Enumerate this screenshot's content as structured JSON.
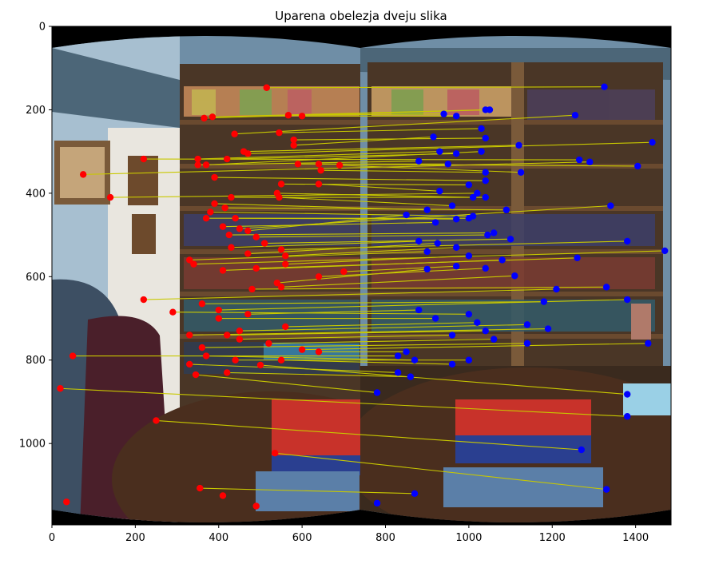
{
  "chart_data": {
    "type": "scatter",
    "title": "Uparena obelezja dveju slika",
    "xlabel": "",
    "ylabel": "",
    "xlim": [
      0,
      1485
    ],
    "ylim": [
      1195,
      0
    ],
    "xticks": [
      0,
      200,
      400,
      600,
      800,
      1000,
      1200,
      1400
    ],
    "yticks": [
      0,
      200,
      400,
      600,
      800,
      1000
    ],
    "grid": false,
    "image_background": "two stitched panoramic photos of a bookshelf room with a dictionary on a table",
    "series": [
      {
        "color": "#ff0000",
        "marker": "circle",
        "points": [
          [
            515,
            147
          ],
          [
            365,
            220
          ],
          [
            385,
            217
          ],
          [
            567,
            213
          ],
          [
            600,
            215
          ],
          [
            438,
            258
          ],
          [
            545,
            255
          ],
          [
            580,
            272
          ],
          [
            580,
            285
          ],
          [
            460,
            300
          ],
          [
            470,
            305
          ],
          [
            350,
            318
          ],
          [
            420,
            318
          ],
          [
            370,
            332
          ],
          [
            220,
            318
          ],
          [
            75,
            355
          ],
          [
            350,
            332
          ],
          [
            590,
            330
          ],
          [
            640,
            330
          ],
          [
            690,
            333
          ],
          [
            645,
            345
          ],
          [
            390,
            362
          ],
          [
            550,
            378
          ],
          [
            640,
            378
          ],
          [
            140,
            410
          ],
          [
            430,
            410
          ],
          [
            540,
            400
          ],
          [
            545,
            410
          ],
          [
            390,
            425
          ],
          [
            415,
            435
          ],
          [
            380,
            445
          ],
          [
            370,
            460
          ],
          [
            440,
            460
          ],
          [
            410,
            480
          ],
          [
            450,
            485
          ],
          [
            470,
            490
          ],
          [
            425,
            500
          ],
          [
            490,
            505
          ],
          [
            510,
            520
          ],
          [
            430,
            530
          ],
          [
            550,
            535
          ],
          [
            470,
            545
          ],
          [
            560,
            550
          ],
          [
            330,
            560
          ],
          [
            340,
            570
          ],
          [
            560,
            570
          ],
          [
            490,
            580
          ],
          [
            410,
            585
          ],
          [
            700,
            588
          ],
          [
            640,
            600
          ],
          [
            540,
            615
          ],
          [
            550,
            625
          ],
          [
            480,
            630
          ],
          [
            220,
            655
          ],
          [
            360,
            665
          ],
          [
            400,
            680
          ],
          [
            470,
            690
          ],
          [
            290,
            685
          ],
          [
            400,
            700
          ],
          [
            560,
            720
          ],
          [
            450,
            730
          ],
          [
            330,
            740
          ],
          [
            420,
            740
          ],
          [
            450,
            750
          ],
          [
            520,
            760
          ],
          [
            360,
            770
          ],
          [
            600,
            775
          ],
          [
            640,
            780
          ],
          [
            50,
            790
          ],
          [
            370,
            790
          ],
          [
            440,
            800
          ],
          [
            550,
            800
          ],
          [
            330,
            810
          ],
          [
            420,
            830
          ],
          [
            345,
            835
          ],
          [
            500,
            812
          ],
          [
            20,
            868
          ],
          [
            250,
            945
          ],
          [
            535,
            1023
          ],
          [
            355,
            1107
          ],
          [
            410,
            1125
          ],
          [
            35,
            1140
          ],
          [
            490,
            1150
          ]
        ]
      },
      {
        "color": "#0000ff",
        "marker": "circle",
        "points": [
          [
            1325,
            145
          ],
          [
            1050,
            200
          ],
          [
            1040,
            200
          ],
          [
            940,
            210
          ],
          [
            970,
            215
          ],
          [
            1255,
            213
          ],
          [
            1030,
            245
          ],
          [
            1040,
            268
          ],
          [
            915,
            265
          ],
          [
            1120,
            285
          ],
          [
            1440,
            278
          ],
          [
            930,
            300
          ],
          [
            970,
            305
          ],
          [
            1030,
            300
          ],
          [
            1265,
            320
          ],
          [
            1290,
            325
          ],
          [
            880,
            323
          ],
          [
            950,
            330
          ],
          [
            1405,
            335
          ],
          [
            1125,
            350
          ],
          [
            1040,
            350
          ],
          [
            1040,
            370
          ],
          [
            1000,
            380
          ],
          [
            930,
            395
          ],
          [
            1020,
            400
          ],
          [
            1040,
            410
          ],
          [
            1010,
            410
          ],
          [
            960,
            430
          ],
          [
            900,
            440
          ],
          [
            1090,
            440
          ],
          [
            1010,
            455
          ],
          [
            1000,
            460
          ],
          [
            970,
            462
          ],
          [
            920,
            470
          ],
          [
            1340,
            430
          ],
          [
            850,
            452
          ],
          [
            1060,
            495
          ],
          [
            1045,
            500
          ],
          [
            1100,
            510
          ],
          [
            880,
            515
          ],
          [
            1380,
            515
          ],
          [
            925,
            520
          ],
          [
            970,
            530
          ],
          [
            900,
            540
          ],
          [
            1470,
            538
          ],
          [
            1000,
            550
          ],
          [
            1260,
            555
          ],
          [
            1080,
            560
          ],
          [
            970,
            575
          ],
          [
            1040,
            580
          ],
          [
            900,
            582
          ],
          [
            1110,
            598
          ],
          [
            1330,
            625
          ],
          [
            1210,
            630
          ],
          [
            1180,
            660
          ],
          [
            1380,
            655
          ],
          [
            880,
            680
          ],
          [
            1000,
            690
          ],
          [
            920,
            700
          ],
          [
            1020,
            710
          ],
          [
            1140,
            715
          ],
          [
            1190,
            725
          ],
          [
            1040,
            730
          ],
          [
            960,
            740
          ],
          [
            1060,
            750
          ],
          [
            1140,
            760
          ],
          [
            1430,
            760
          ],
          [
            850,
            780
          ],
          [
            830,
            790
          ],
          [
            870,
            800
          ],
          [
            1000,
            800
          ],
          [
            960,
            810
          ],
          [
            830,
            830
          ],
          [
            860,
            840
          ],
          [
            780,
            878
          ],
          [
            1380,
            882
          ],
          [
            1380,
            935
          ],
          [
            1270,
            1015
          ],
          [
            1330,
            1110
          ],
          [
            870,
            1120
          ],
          [
            780,
            1143
          ]
        ]
      }
    ],
    "lines": {
      "color": "#c8c800",
      "count": 80
    }
  }
}
